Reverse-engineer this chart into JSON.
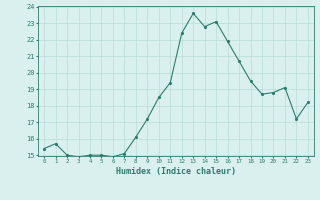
{
  "x": [
    0,
    1,
    2,
    3,
    4,
    5,
    6,
    7,
    8,
    9,
    10,
    11,
    12,
    13,
    14,
    15,
    16,
    17,
    18,
    19,
    20,
    21,
    22,
    23
  ],
  "y": [
    15.4,
    15.7,
    15.0,
    14.9,
    15.0,
    15.0,
    14.9,
    15.1,
    16.1,
    17.2,
    18.5,
    19.4,
    22.4,
    23.6,
    22.8,
    23.1,
    21.9,
    20.7,
    19.5,
    18.7,
    18.8,
    19.1,
    17.2,
    18.2
  ],
  "xlabel": "Humidex (Indice chaleur)",
  "ylim": [
    15,
    24
  ],
  "xlim": [
    -0.5,
    23.5
  ],
  "yticks": [
    15,
    16,
    17,
    18,
    19,
    20,
    21,
    22,
    23,
    24
  ],
  "xticks": [
    0,
    1,
    2,
    3,
    4,
    5,
    6,
    7,
    8,
    9,
    10,
    11,
    12,
    13,
    14,
    15,
    16,
    17,
    18,
    19,
    20,
    21,
    22,
    23
  ],
  "line_color": "#2d7d6e",
  "marker_color": "#2d7d6e",
  "bg_color": "#d9f0ee",
  "grid_color": "#b8ddd8",
  "axis_color": "#2d7d6e",
  "tick_label_color": "#2d7d6e"
}
